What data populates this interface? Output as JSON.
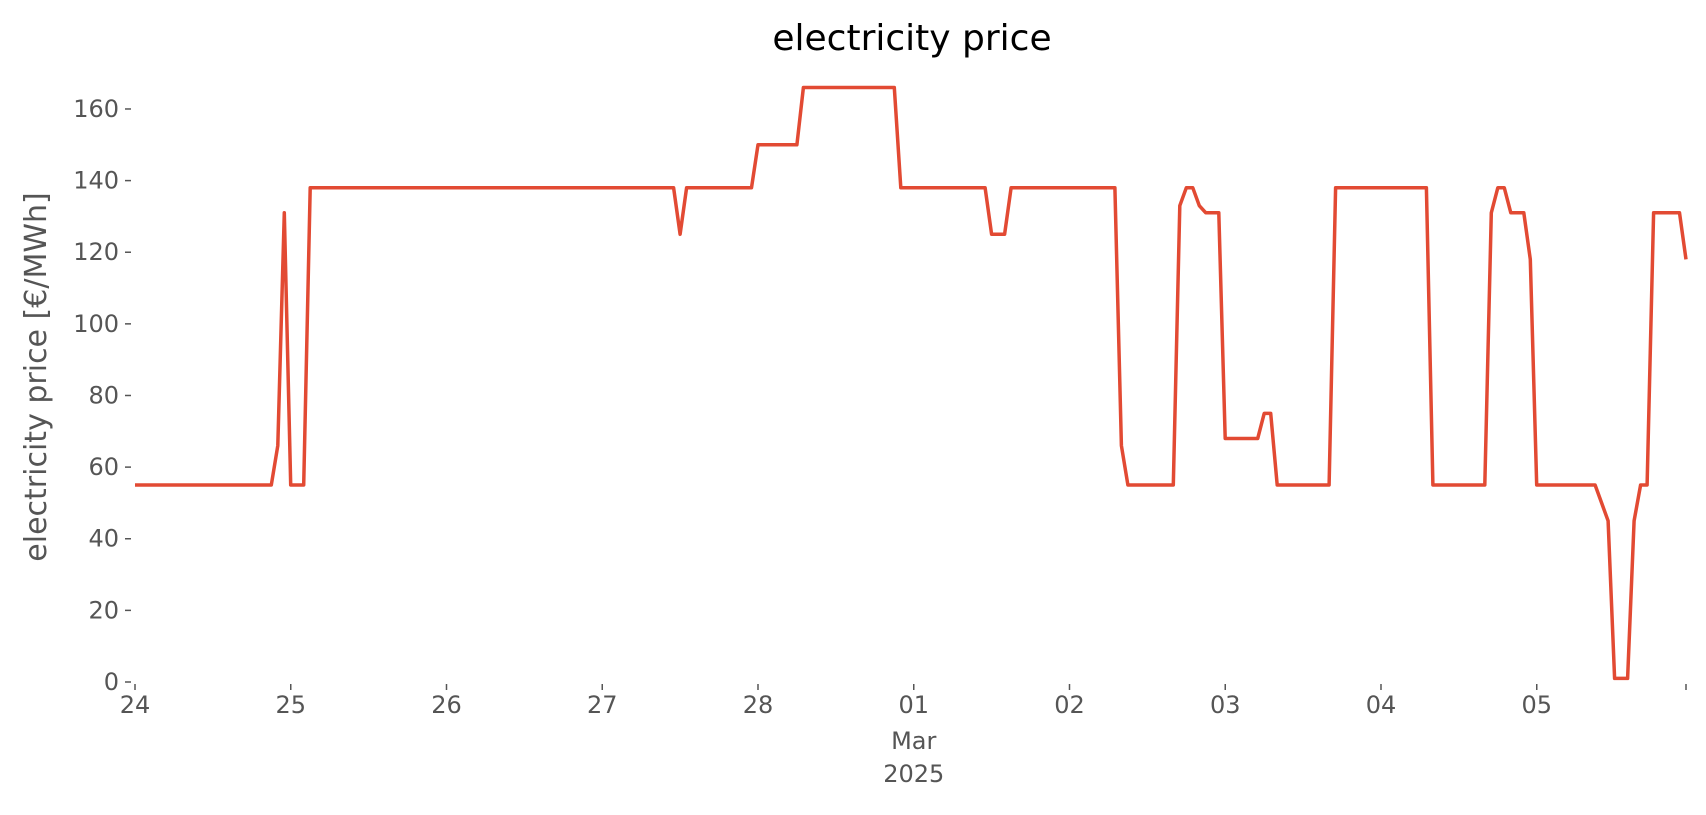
{
  "chart_data": {
    "type": "line",
    "title": "electricity price",
    "xlabel": "",
    "ylabel": "electricity price [€/MWh]",
    "grid": false,
    "legend": "none",
    "x_unit": "date",
    "xlim": [
      "2025-02-24T00:00",
      "2025-03-05T23:00"
    ],
    "ylim": [
      0,
      172
    ],
    "x_ticks": [
      {
        "x": "2025-02-24T00:00",
        "label": "24"
      },
      {
        "x": "2025-02-25T00:00",
        "label": "25"
      },
      {
        "x": "2025-02-26T00:00",
        "label": "26"
      },
      {
        "x": "2025-02-27T00:00",
        "label": "27"
      },
      {
        "x": "2025-02-28T00:00",
        "label": "28"
      },
      {
        "x": "2025-03-01T00:00",
        "label": "01",
        "label2": "Mar",
        "label3": "2025"
      },
      {
        "x": "2025-03-02T00:00",
        "label": "02"
      },
      {
        "x": "2025-03-03T00:00",
        "label": "03"
      },
      {
        "x": "2025-03-04T00:00",
        "label": "04"
      },
      {
        "x": "2025-03-05T00:00",
        "label": "05"
      }
    ],
    "y_ticks": [
      0,
      20,
      40,
      60,
      80,
      100,
      120,
      140,
      160
    ],
    "series": [
      {
        "name": "",
        "color": "#e24a33",
        "points": [
          [
            "2025-02-24T00:00",
            55
          ],
          [
            "2025-02-24T21:00",
            55
          ],
          [
            "2025-02-24T22:00",
            66
          ],
          [
            "2025-02-24T23:00",
            131
          ],
          [
            "2025-02-25T00:00",
            55
          ],
          [
            "2025-02-25T02:00",
            55
          ],
          [
            "2025-02-25T03:00",
            138
          ],
          [
            "2025-02-27T11:00",
            138
          ],
          [
            "2025-02-27T12:00",
            125
          ],
          [
            "2025-02-27T13:00",
            138
          ],
          [
            "2025-02-27T23:00",
            138
          ],
          [
            "2025-02-28T00:00",
            150
          ],
          [
            "2025-02-28T06:00",
            150
          ],
          [
            "2025-02-28T07:00",
            166
          ],
          [
            "2025-02-28T21:00",
            166
          ],
          [
            "2025-02-28T22:00",
            138
          ],
          [
            "2025-03-01T11:00",
            138
          ],
          [
            "2025-03-01T12:00",
            125
          ],
          [
            "2025-03-01T14:00",
            125
          ],
          [
            "2025-03-01T15:00",
            138
          ],
          [
            "2025-03-02T07:00",
            138
          ],
          [
            "2025-03-02T08:00",
            66
          ],
          [
            "2025-03-02T09:00",
            55
          ],
          [
            "2025-03-02T16:00",
            55
          ],
          [
            "2025-03-02T17:00",
            133
          ],
          [
            "2025-03-02T18:00",
            138
          ],
          [
            "2025-03-02T19:00",
            138
          ],
          [
            "2025-03-02T20:00",
            133
          ],
          [
            "2025-03-02T21:00",
            131
          ],
          [
            "2025-03-02T23:00",
            131
          ],
          [
            "2025-03-03T00:00",
            68
          ],
          [
            "2025-03-03T05:00",
            68
          ],
          [
            "2025-03-03T06:00",
            75
          ],
          [
            "2025-03-03T07:00",
            75
          ],
          [
            "2025-03-03T08:00",
            55
          ],
          [
            "2025-03-03T16:00",
            55
          ],
          [
            "2025-03-03T17:00",
            138
          ],
          [
            "2025-03-04T07:00",
            138
          ],
          [
            "2025-03-04T08:00",
            55
          ],
          [
            "2025-03-04T16:00",
            55
          ],
          [
            "2025-03-04T17:00",
            131
          ],
          [
            "2025-03-04T18:00",
            138
          ],
          [
            "2025-03-04T19:00",
            138
          ],
          [
            "2025-03-04T20:00",
            131
          ],
          [
            "2025-03-04T22:00",
            131
          ],
          [
            "2025-03-04T23:00",
            118
          ],
          [
            "2025-03-05T00:00",
            55
          ],
          [
            "2025-03-05T09:00",
            55
          ],
          [
            "2025-03-05T10:00",
            50
          ],
          [
            "2025-03-05T11:00",
            45
          ],
          [
            "2025-03-05T12:00",
            1
          ],
          [
            "2025-03-05T14:00",
            1
          ],
          [
            "2025-03-05T15:00",
            45
          ],
          [
            "2025-03-05T16:00",
            55
          ],
          [
            "2025-03-05T17:00",
            55
          ],
          [
            "2025-03-05T18:00",
            131
          ],
          [
            "2025-03-05T22:00",
            131
          ],
          [
            "2025-03-05T23:00",
            118
          ]
        ]
      }
    ]
  }
}
